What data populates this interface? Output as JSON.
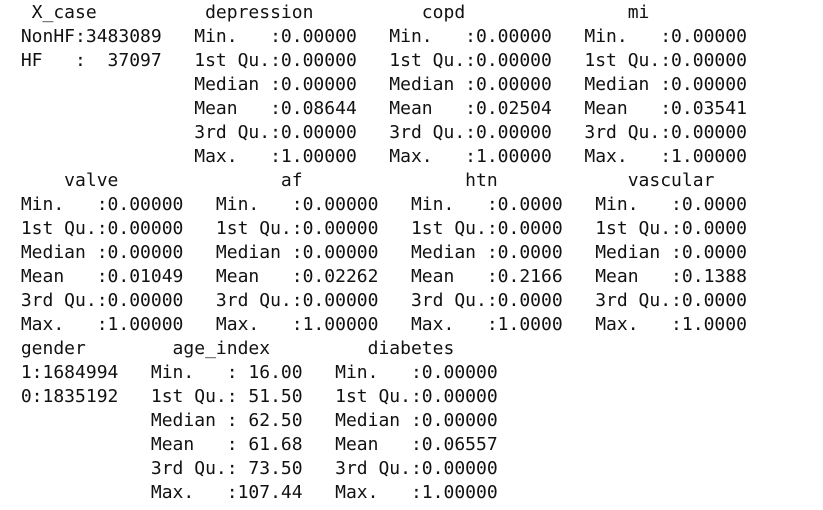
{
  "console": {
    "lines": [
      "  X_case          depression          copd               mi        ",
      " NonHF:3483089   Min.   :0.00000   Min.   :0.00000   Min.   :0.00000  ",
      " HF   :  37097   1st Qu.:0.00000   1st Qu.:0.00000   1st Qu.:0.00000  ",
      "                 Median :0.00000   Median :0.00000   Median :0.00000  ",
      "                 Mean   :0.08644   Mean   :0.02504   Mean   :0.03541  ",
      "                 3rd Qu.:0.00000   3rd Qu.:0.00000   3rd Qu.:0.00000  ",
      "                 Max.   :1.00000   Max.   :1.00000   Max.   :1.00000  ",
      "     valve               af               htn            vascular    ",
      " Min.   :0.00000   Min.   :0.00000   Min.   :0.0000   Min.   :0.0000  ",
      " 1st Qu.:0.00000   1st Qu.:0.00000   1st Qu.:0.0000   1st Qu.:0.0000  ",
      " Median :0.00000   Median :0.00000   Median :0.0000   Median :0.0000  ",
      " Mean   :0.01049   Mean   :0.02262   Mean   :0.2166   Mean   :0.1388  ",
      " 3rd Qu.:0.00000   3rd Qu.:0.00000   3rd Qu.:0.0000   3rd Qu.:0.0000  ",
      " Max.   :1.00000   Max.   :1.00000   Max.   :1.0000   Max.   :1.0000  ",
      " gender        age_index         diabetes      ",
      " 1:1684994   Min.   : 16.00   Min.   :0.00000  ",
      " 0:1835192   1st Qu.: 51.50   1st Qu.:0.00000  ",
      "             Median : 62.50   Median :0.00000  ",
      "             Mean   : 61.68   Mean   :0.06557  ",
      "             3rd Qu.: 73.50   3rd Qu.:0.00000  ",
      "             Max.   :107.44   Max.   :1.00000  "
    ]
  }
}
